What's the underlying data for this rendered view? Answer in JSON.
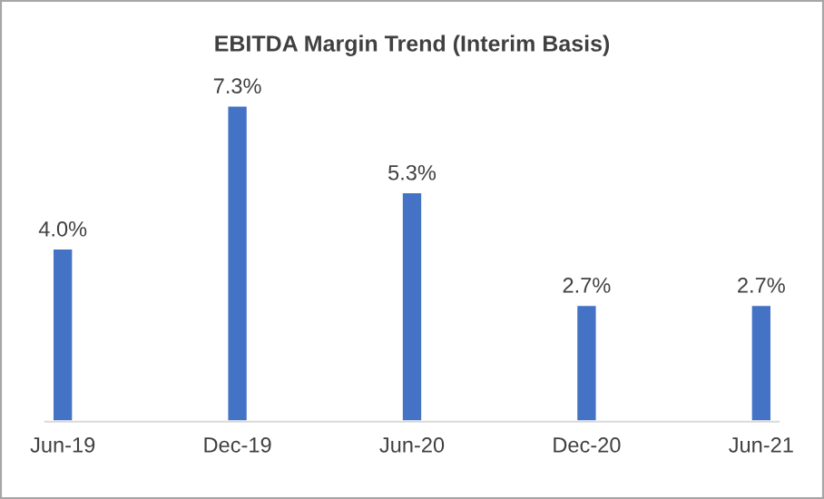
{
  "chart_data": {
    "type": "bar",
    "title": "EBITDA Margin Trend (Interim Basis)",
    "categories": [
      "Jun-19",
      "Dec-19",
      "Jun-20",
      "Dec-20",
      "Jun-21"
    ],
    "values": [
      4.0,
      7.3,
      5.3,
      2.7,
      2.7
    ],
    "value_labels": [
      "4.0%",
      "7.3%",
      "5.3%",
      "2.7%",
      "2.7%"
    ],
    "color": "#4472c4",
    "tick_labels": "x",
    "grid": false,
    "legend": false
  }
}
